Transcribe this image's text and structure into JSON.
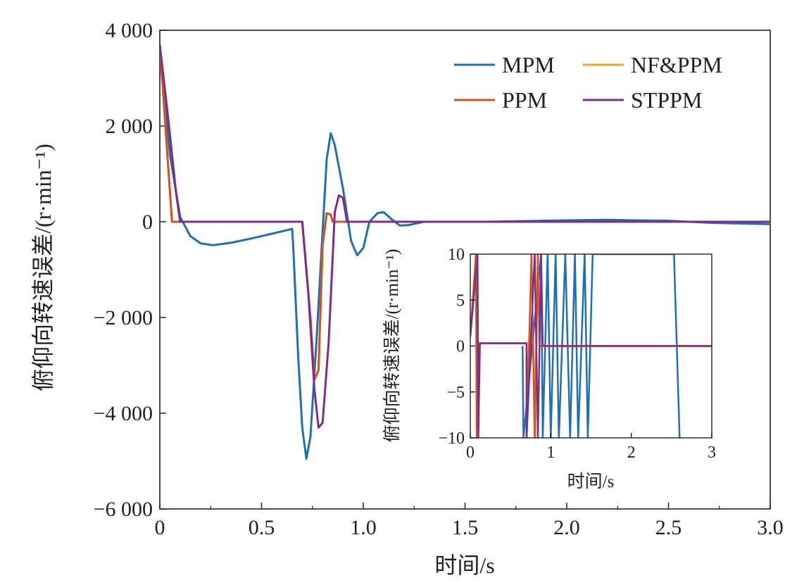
{
  "colors": {
    "MPM": "#1f6fb2",
    "NF&PPM": "#e9a82a",
    "PPM": "#d1551f",
    "STPPM": "#7a2f8f",
    "axis": "#231f20"
  },
  "chart_data": [
    {
      "type": "line",
      "xlabel": "时间/s",
      "ylabel": "俯仰向转速误差/(r·min⁻¹)",
      "xlim": [
        0,
        3.0
      ],
      "ylim": [
        -6000,
        4000
      ],
      "x_ticks": [
        "0",
        "0.5",
        "1.0",
        "1.5",
        "2.0",
        "2.5",
        "3.0"
      ],
      "y_ticks": [
        "−6 000",
        "−4 000",
        "−2 000",
        "0",
        "2 000",
        "4 000"
      ],
      "grid": false,
      "legend_position": "top-right",
      "series": [
        {
          "name": "MPM",
          "points": [
            [
              0,
              3700
            ],
            [
              0.05,
              1400
            ],
            [
              0.1,
              100
            ],
            [
              0.15,
              -300
            ],
            [
              0.2,
              -450
            ],
            [
              0.26,
              -490
            ],
            [
              0.35,
              -440
            ],
            [
              0.45,
              -350
            ],
            [
              0.55,
              -250
            ],
            [
              0.65,
              -150
            ],
            [
              0.655,
              -450
            ],
            [
              0.68,
              -2800
            ],
            [
              0.7,
              -4300
            ],
            [
              0.72,
              -4950
            ],
            [
              0.74,
              -4500
            ],
            [
              0.77,
              -2500
            ],
            [
              0.8,
              -200
            ],
            [
              0.82,
              1300
            ],
            [
              0.84,
              1850
            ],
            [
              0.86,
              1600
            ],
            [
              0.9,
              700
            ],
            [
              0.94,
              -400
            ],
            [
              0.97,
              -700
            ],
            [
              1.0,
              -550
            ],
            [
              1.03,
              0
            ],
            [
              1.07,
              180
            ],
            [
              1.1,
              200
            ],
            [
              1.14,
              50
            ],
            [
              1.18,
              -80
            ],
            [
              1.22,
              -70
            ],
            [
              1.3,
              0
            ],
            [
              1.6,
              0
            ],
            [
              2.0,
              30
            ],
            [
              2.2,
              40
            ],
            [
              2.5,
              20
            ],
            [
              2.7,
              -20
            ],
            [
              3.0,
              -50
            ]
          ]
        },
        {
          "name": "NF&PPM",
          "points": [
            [
              0,
              3700
            ],
            [
              0.06,
              0
            ],
            [
              0.7,
              0
            ],
            [
              0.74,
              -2000
            ],
            [
              0.76,
              -3300
            ],
            [
              0.78,
              -3100
            ],
            [
              0.8,
              -500
            ],
            [
              0.82,
              180
            ],
            [
              0.84,
              150
            ],
            [
              0.85,
              0
            ],
            [
              3.0,
              0
            ]
          ]
        },
        {
          "name": "PPM",
          "points": [
            [
              0,
              3700
            ],
            [
              0.06,
              0
            ],
            [
              0.7,
              0
            ],
            [
              0.74,
              -2000
            ],
            [
              0.76,
              -3300
            ],
            [
              0.78,
              -3100
            ],
            [
              0.8,
              -500
            ],
            [
              0.82,
              180
            ],
            [
              0.84,
              150
            ],
            [
              0.85,
              0
            ],
            [
              3.0,
              0
            ]
          ]
        },
        {
          "name": "STPPM",
          "points": [
            [
              0,
              3700
            ],
            [
              0.04,
              2200
            ],
            [
              0.08,
              600
            ],
            [
              0.1,
              0
            ],
            [
              0.7,
              0
            ],
            [
              0.73,
              -1500
            ],
            [
              0.76,
              -3500
            ],
            [
              0.78,
              -4300
            ],
            [
              0.8,
              -4200
            ],
            [
              0.83,
              -2500
            ],
            [
              0.86,
              200
            ],
            [
              0.88,
              550
            ],
            [
              0.9,
              500
            ],
            [
              0.92,
              0
            ],
            [
              3.0,
              0
            ]
          ]
        }
      ]
    },
    {
      "type": "line",
      "xlabel": "时间/s",
      "ylabel": "俯仰向转速误差/(r·min⁻¹)",
      "xlim": [
        0,
        3
      ],
      "ylim": [
        -10,
        10
      ],
      "x_ticks": [
        "0",
        "1",
        "2",
        "3"
      ],
      "y_ticks": [
        "−10",
        "−5",
        "0",
        "5",
        "10"
      ],
      "grid": false,
      "series": [
        {
          "name": "MPM",
          "points": [
            [
              0.65,
              0
            ],
            [
              0.66,
              -10
            ],
            [
              0.88,
              10
            ],
            [
              0.9,
              -10
            ],
            [
              0.96,
              10
            ],
            [
              1.0,
              -10
            ],
            [
              1.06,
              10
            ],
            [
              1.1,
              -10
            ],
            [
              1.18,
              10
            ],
            [
              1.24,
              -10
            ],
            [
              1.3,
              10
            ],
            [
              1.34,
              -10
            ],
            [
              1.42,
              10
            ],
            [
              1.46,
              -10
            ],
            [
              1.52,
              10
            ],
            [
              2.53,
              10
            ],
            [
              2.6,
              -10
            ]
          ]
        },
        {
          "name": "NF&PPM",
          "points": [
            [
              0,
              1
            ],
            [
              0.07,
              10
            ],
            [
              0.08,
              -10
            ],
            [
              0.1,
              0.3
            ],
            [
              0.7,
              0.3
            ],
            [
              0.7,
              -10
            ],
            [
              0.76,
              10
            ],
            [
              0.8,
              -10
            ],
            [
              0.84,
              10
            ],
            [
              0.86,
              0
            ],
            [
              3.0,
              0
            ]
          ]
        },
        {
          "name": "PPM",
          "points": [
            [
              0,
              1
            ],
            [
              0.07,
              10
            ],
            [
              0.08,
              -10
            ],
            [
              0.1,
              0.3
            ],
            [
              0.7,
              0.3
            ],
            [
              0.7,
              -10
            ],
            [
              0.76,
              10
            ],
            [
              0.8,
              -10
            ],
            [
              0.84,
              10
            ],
            [
              0.86,
              0
            ],
            [
              3.0,
              0
            ]
          ]
        },
        {
          "name": "STPPM",
          "points": [
            [
              0,
              1
            ],
            [
              0.09,
              10
            ],
            [
              0.1,
              -10
            ],
            [
              0.12,
              0.3
            ],
            [
              0.7,
              0.3
            ],
            [
              0.7,
              -10
            ],
            [
              0.8,
              10
            ],
            [
              0.84,
              -10
            ],
            [
              0.88,
              10
            ],
            [
              0.9,
              0
            ],
            [
              3.0,
              0
            ]
          ]
        }
      ]
    }
  ]
}
